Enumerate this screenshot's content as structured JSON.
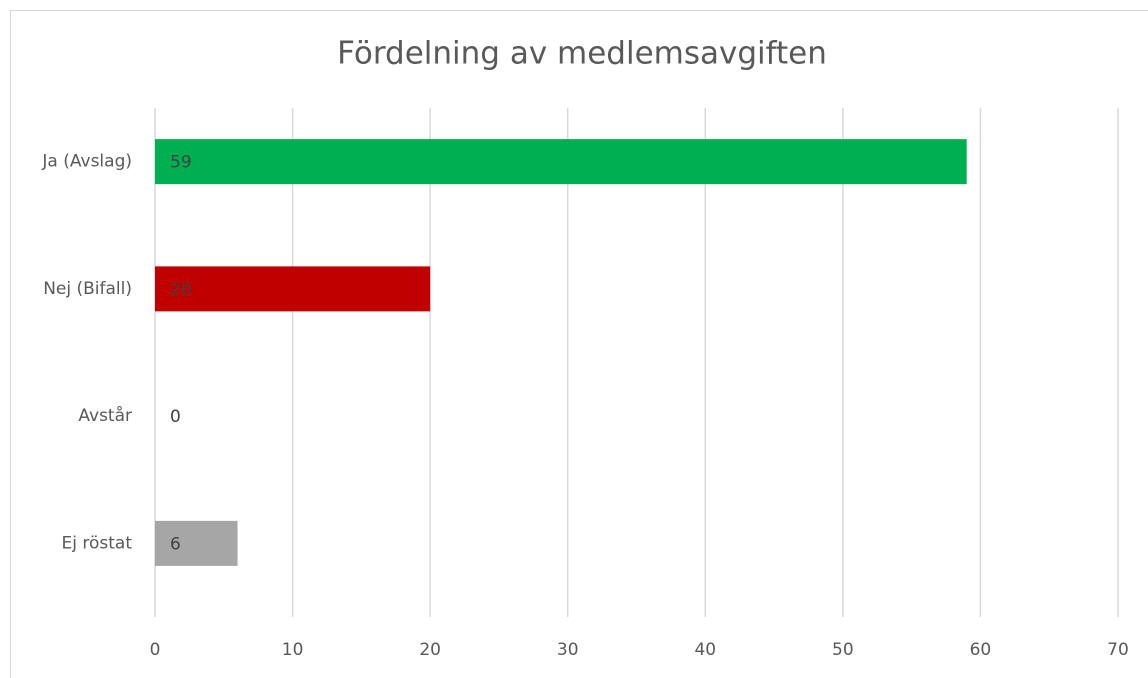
{
  "chart_data": {
    "type": "bar",
    "orientation": "horizontal",
    "title": "Fördelning av medlemsavgiften",
    "categories": [
      "Ja (Avslag)",
      "Nej (Bifall)",
      "Avstår",
      "Ej röstat"
    ],
    "values": [
      59,
      20,
      0,
      6
    ],
    "colors": [
      "#00b050",
      "#c00000",
      "#a6a6a6",
      "#a6a6a6"
    ],
    "xlim": [
      0,
      70
    ],
    "xticks": [
      0,
      10,
      20,
      30,
      40,
      50,
      60,
      70
    ],
    "grid": true
  }
}
